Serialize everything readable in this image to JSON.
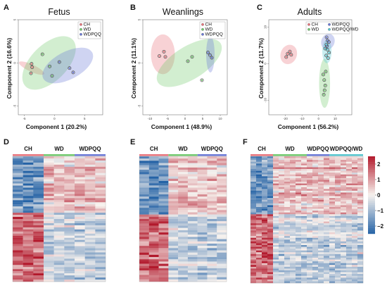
{
  "colors": {
    "CH": "#e8737b",
    "WD": "#72c96e",
    "WDPQQ": "#6a78d6",
    "WDPQQ/WD": "#56c6cf",
    "heat_low": "#2563a6",
    "heat_mid": "#f7f2ee",
    "heat_high": "#b2182b"
  },
  "chart_data": [
    {
      "panel": "A",
      "type": "scatter",
      "title": "Fetus",
      "xlabel": "Component 1 (20.2%)",
      "ylabel": "Component 2 (16.6%)",
      "xlim": [
        -6,
        8
      ],
      "ylim": [
        -6,
        5
      ],
      "grid": false,
      "xticks": [
        -5,
        0,
        5
      ],
      "yticks": [
        -5,
        0,
        5
      ],
      "legend": {
        "entries": [
          "CH",
          "WD",
          "WDPQQ"
        ],
        "placement": "top-right"
      },
      "series": [
        {
          "name": "CH",
          "x": [
            -3.9,
            -3.7,
            -3.8
          ],
          "y": [
            -1.2,
            -0.5,
            -0.1
          ],
          "ellipse": {
            "cx": -3.8,
            "cy": -0.6,
            "rx": 0.6,
            "ry": 1.6,
            "angle": 65
          }
        },
        {
          "name": "WD",
          "x": [
            -2.0,
            -0.8,
            -0.4
          ],
          "y": [
            1.0,
            -0.4,
            -1.5
          ],
          "ellipse": {
            "cx": -0.9,
            "cy": 0.0,
            "rx": 5.5,
            "ry": 2.1,
            "angle": 45
          }
        },
        {
          "name": "WDPQQ",
          "x": [
            0.8,
            2.5,
            3.1
          ],
          "y": [
            0.1,
            -0.6,
            -1.1
          ],
          "ellipse": {
            "cx": 2.2,
            "cy": -0.3,
            "rx": 4.6,
            "ry": 1.6,
            "angle": 28
          }
        }
      ]
    },
    {
      "panel": "B",
      "type": "scatter",
      "title": "Weanlings",
      "xlabel": "Component 1 (48.9%)",
      "ylabel": "Component 2 (11.1%)",
      "xlim": [
        -12,
        12
      ],
      "ylim": [
        -6,
        5
      ],
      "grid": false,
      "xticks": [
        -10,
        -5,
        0,
        5,
        10
      ],
      "yticks": [
        -5,
        0,
        5
      ],
      "legend": {
        "entries": [
          "CH",
          "WD",
          "WDPQQ"
        ],
        "placement": "top-right"
      },
      "series": [
        {
          "name": "CH",
          "x": [
            -7.3,
            -6.0,
            -5.6
          ],
          "y": [
            0.8,
            1.3,
            0.7
          ],
          "ellipse": {
            "cx": -6.3,
            "cy": 1.0,
            "rx": 3.4,
            "ry": 2.3,
            "angle": 0
          }
        },
        {
          "name": "WD",
          "x": [
            0.8,
            2.0,
            4.8
          ],
          "y": [
            0.2,
            0.7,
            -2.0
          ],
          "ellipse": {
            "cx": 1.2,
            "cy": 0.0,
            "rx": 10.5,
            "ry": 1.9,
            "angle": 32
          }
        },
        {
          "name": "WDPQQ",
          "x": [
            6.5,
            7.1,
            7.6
          ],
          "y": [
            1.2,
            0.9,
            0.6
          ],
          "ellipse": {
            "cx": 7.2,
            "cy": 1.0,
            "rx": 1.2,
            "ry": 2.1,
            "angle": 0
          }
        }
      ]
    },
    {
      "panel": "C",
      "type": "scatter",
      "title": "Adults",
      "xlabel": "Component 1 (56.2%)",
      "ylabel": "Component 2 (11.7%)",
      "xlim": [
        -30,
        20
      ],
      "ylim": [
        -14,
        12
      ],
      "grid": false,
      "xticks": [
        -20,
        -10,
        0,
        10
      ],
      "yticks": [
        -10,
        0,
        10
      ],
      "legend": {
        "entries": [
          "CH",
          "WD",
          "WDPQQ",
          "WDPQQ/WD"
        ],
        "placement": "top-right"
      },
      "series": [
        {
          "name": "CH",
          "x": [
            -19.5,
            -18.6,
            -17.3,
            -16.5
          ],
          "y": [
            1.8,
            2.7,
            3.3,
            2.4
          ],
          "ellipse": {
            "cx": -18.0,
            "cy": 2.5,
            "rx": 4.9,
            "ry": 2.7,
            "angle": -20
          }
        },
        {
          "name": "WD",
          "x": [
            2.8,
            3.4,
            4.0,
            4.3,
            3.1,
            3.6
          ],
          "y": [
            -3.0,
            -4.5,
            -6.0,
            -2.2,
            -8.5,
            -7.3
          ],
          "ellipse": {
            "cx": 3.6,
            "cy": -5.4,
            "rx": 3.3,
            "ry": 6.7,
            "angle": 0
          }
        },
        {
          "name": "WDPQQ",
          "x": [
            4.8,
            5.4,
            6.2,
            5.0
          ],
          "y": [
            7.2,
            6.3,
            5.9,
            4.8
          ],
          "ellipse": {
            "cx": 5.6,
            "cy": 6.0,
            "rx": 4.0,
            "ry": 2.2,
            "angle": -20
          }
        },
        {
          "name": "WDPQQ/WD",
          "x": [
            3.9,
            4.6,
            5.3,
            6.3,
            5.7,
            4.7
          ],
          "y": [
            4.1,
            2.2,
            3.8,
            3.0,
            1.5,
            5.2
          ],
          "ellipse": {
            "cx": 5.0,
            "cy": 3.3,
            "rx": 2.8,
            "ry": 3.2,
            "angle": 0
          }
        }
      ]
    },
    {
      "panel": "D",
      "type": "heatmap",
      "groups": [
        "CH",
        "WD",
        "WDPQQ"
      ],
      "columns_per_group": [
        3,
        3,
        3
      ],
      "rows": 60,
      "value_range": [
        -2.5,
        2.5
      ]
    },
    {
      "panel": "E",
      "type": "heatmap",
      "groups": [
        "CH",
        "WD",
        "WDPQQ"
      ],
      "columns_per_group": [
        3,
        3,
        3
      ],
      "rows": 56,
      "value_range": [
        -2.5,
        2.5
      ]
    },
    {
      "panel": "F",
      "type": "heatmap",
      "groups": [
        "CH",
        "WD",
        "WDPQQ",
        "WDPQQ/WD"
      ],
      "columns_per_group": [
        4,
        6,
        4,
        6
      ],
      "rows": 70,
      "value_range": [
        -2.5,
        2.5
      ],
      "colorbar_ticks": [
        "2",
        "1",
        "0",
        "−1",
        "−2"
      ]
    }
  ]
}
